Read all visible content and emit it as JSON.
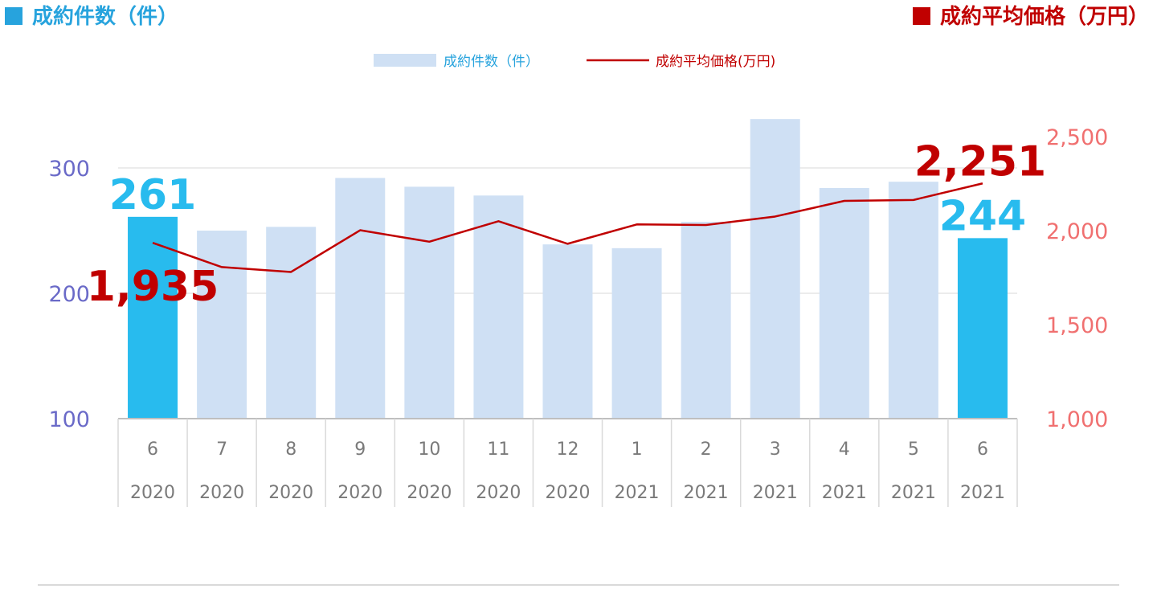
{
  "headers": {
    "left": "成約件数（件）",
    "right": "成約平均価格（万円）"
  },
  "legend": {
    "bar_label": "成約件数（件）",
    "line_label": "成約平均価格(万円)"
  },
  "colors": {
    "bar": "#cfe0f4",
    "bar_highlight": "#28bbee",
    "line": "#c00000",
    "left_axis": "#6a6ac8",
    "right_axis": "#f07070",
    "header_left": "#27a3dd",
    "header_right": "#c00000"
  },
  "chart_data": {
    "type": "bar",
    "categories": [
      "6",
      "7",
      "8",
      "9",
      "10",
      "11",
      "12",
      "1",
      "2",
      "3",
      "4",
      "5",
      "6"
    ],
    "years": [
      "2020",
      "2020",
      "2020",
      "2020",
      "2020",
      "2020",
      "2020",
      "2021",
      "2021",
      "2021",
      "2021",
      "2021",
      "2021"
    ],
    "series": [
      {
        "name": "成約件数（件）",
        "type": "bar",
        "axis": "left",
        "values": [
          261,
          250,
          253,
          292,
          285,
          278,
          239,
          236,
          257,
          339,
          284,
          289,
          244
        ],
        "highlight": [
          0,
          12
        ]
      },
      {
        "name": "成約平均価格(万円)",
        "type": "line",
        "axis": "right",
        "values": [
          1935,
          1806,
          1780,
          2002,
          1941,
          2050,
          1930,
          2033,
          2030,
          2075,
          2158,
          2163,
          2251
        ]
      }
    ],
    "left_axis": {
      "min": 100,
      "max": 300,
      "ticks": [
        "100",
        "200",
        "300"
      ]
    },
    "right_axis": {
      "min": 1000,
      "max": 2500,
      "ticks": [
        "1,000",
        "1,500",
        "2,000",
        "2,500"
      ]
    },
    "labels": {
      "first_bar": "261",
      "last_bar": "244",
      "first_line": "1,935",
      "last_line": "2,251"
    },
    "grid": true,
    "legend_position": "top-center"
  }
}
